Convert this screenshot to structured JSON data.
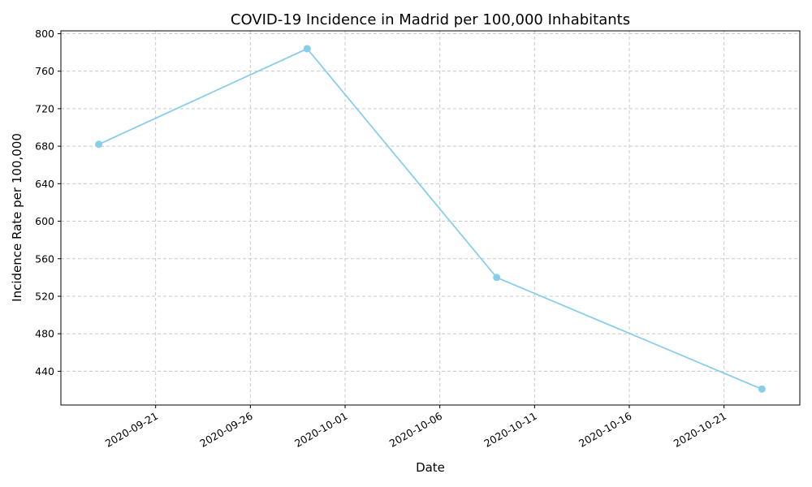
{
  "chart_data": {
    "type": "line",
    "title": "COVID-19 Incidence in Madrid per 100,000 Inhabitants",
    "xlabel": "Date",
    "ylabel": "Incidence Rate per 100,000",
    "x": [
      "2020-09-18",
      "2020-09-29",
      "2020-10-09",
      "2020-10-23"
    ],
    "series": [
      {
        "values": [
          682,
          784,
          540,
          421
        ],
        "color": "#87CEEB",
        "marker": "circle"
      }
    ],
    "xlim": [
      "2020-09-16",
      "2020-10-25"
    ],
    "ylim": [
      404,
      803
    ],
    "x_ticks": [
      "2020-09-21",
      "2020-09-26",
      "2020-10-01",
      "2020-10-06",
      "2020-10-11",
      "2020-10-16",
      "2020-10-21"
    ],
    "y_ticks": [
      440,
      480,
      520,
      560,
      600,
      640,
      680,
      720,
      760,
      800
    ],
    "grid": true,
    "grid_style": "dashed",
    "x_tick_rotation": "30deg"
  }
}
